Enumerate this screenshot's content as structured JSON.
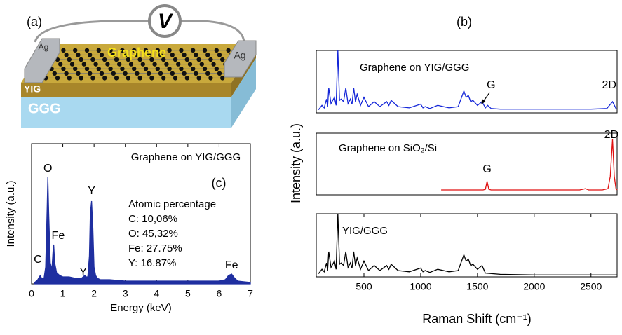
{
  "illustration": {
    "label": "(a)",
    "voltmeter": "V",
    "electrodes": [
      "Ag",
      "Ag"
    ],
    "sheet": "Graphene",
    "layers": [
      "YIG",
      "GGG"
    ]
  },
  "chart_data": [
    {
      "type": "area",
      "panel_label": "(c)",
      "title": "Graphene on YIG/GGG",
      "xlabel": "Energy (keV)",
      "ylabel": "Intensity (a.u.)",
      "xlim": [
        0,
        7
      ],
      "xticks": [
        0,
        1,
        2,
        3,
        4,
        5,
        6,
        7
      ],
      "ylim": [
        0,
        100
      ],
      "color": "#1f2fa0",
      "x": [
        0.1,
        0.2,
        0.25,
        0.28,
        0.32,
        0.4,
        0.45,
        0.5,
        0.52,
        0.55,
        0.6,
        0.65,
        0.69,
        0.71,
        0.74,
        0.8,
        0.9,
        1.0,
        1.2,
        1.4,
        1.6,
        1.7,
        1.75,
        1.8,
        1.85,
        1.88,
        1.92,
        1.96,
        2.0,
        2.05,
        2.1,
        2.2,
        2.5,
        3.0,
        3.5,
        4.0,
        4.5,
        5.0,
        5.5,
        6.0,
        6.2,
        6.3,
        6.4,
        6.5,
        6.6,
        7.0
      ],
      "values": [
        1,
        3,
        5,
        6,
        4,
        4,
        12,
        55,
        76,
        50,
        15,
        10,
        25,
        28,
        15,
        8,
        6,
        5,
        5,
        4,
        4,
        6,
        5,
        5,
        20,
        50,
        59,
        40,
        12,
        6,
        4,
        3,
        3,
        2,
        2,
        2,
        2,
        2,
        2,
        2,
        3,
        6,
        7,
        4,
        2,
        1
      ],
      "annotations": [
        {
          "text": "C",
          "x": 0.2,
          "y": 17
        },
        {
          "text": "O",
          "x": 0.52,
          "y": 82
        },
        {
          "text": "Fe",
          "x": 0.85,
          "y": 34
        },
        {
          "text": "Y",
          "x": 1.65,
          "y": 8
        },
        {
          "text": "Y",
          "x": 1.92,
          "y": 66
        },
        {
          "text": "Fe",
          "x": 6.4,
          "y": 13
        }
      ],
      "text_block": [
        "Atomic percentage",
        "C: 10,06%",
        "O: 45,32%",
        "Fe: 27.75%",
        "Y: 16.87%"
      ]
    },
    {
      "type": "line",
      "panel_label": "(b)",
      "title": "Graphene on YIG/GGG",
      "xlim": [
        80,
        2730
      ],
      "ylim": [
        0,
        100
      ],
      "color": "#1426d8",
      "x": [
        100,
        130,
        150,
        170,
        180,
        190,
        210,
        240,
        255,
        270,
        285,
        300,
        320,
        340,
        360,
        380,
        395,
        410,
        425,
        440,
        470,
        500,
        540,
        590,
        640,
        700,
        720,
        740,
        800,
        900,
        1000,
        1020,
        1040,
        1080,
        1150,
        1250,
        1330,
        1380,
        1400,
        1420,
        1440,
        1460,
        1500,
        1540,
        1570,
        1590,
        1620,
        1700,
        2000,
        2500,
        2640,
        2690,
        2720,
        2730
      ],
      "values": [
        5,
        12,
        8,
        22,
        10,
        40,
        15,
        25,
        12,
        100,
        20,
        22,
        18,
        40,
        15,
        22,
        14,
        40,
        18,
        30,
        12,
        25,
        10,
        18,
        10,
        18,
        12,
        20,
        10,
        8,
        14,
        8,
        10,
        7,
        12,
        8,
        10,
        35,
        25,
        28,
        18,
        20,
        12,
        18,
        8,
        12,
        7,
        6,
        6,
        6,
        7,
        18,
        7,
        6
      ],
      "annotations": [
        {
          "text": "G",
          "x": 1620,
          "y": 44,
          "arrow": true
        },
        {
          "text": "2D",
          "x": 2660,
          "y": 44
        }
      ]
    },
    {
      "type": "line",
      "title": "Graphene on SiO₂/Si",
      "ylabel": "Intensity (a.u.)",
      "xlim": [
        80,
        2730
      ],
      "ylim": [
        0,
        100
      ],
      "color": "#e01010",
      "x": [
        1180,
        1400,
        1550,
        1570,
        1585,
        1600,
        1620,
        2000,
        2400,
        2450,
        2480,
        2600,
        2650,
        2670,
        2690,
        2705,
        2720,
        2730
      ],
      "values": [
        8,
        8,
        8,
        9,
        22,
        9,
        8,
        8,
        8,
        10,
        8,
        8,
        10,
        30,
        90,
        30,
        10,
        8
      ],
      "annotations": [
        {
          "text": "G",
          "x": 1585,
          "y": 41
        },
        {
          "text": "2D",
          "x": 2680,
          "y": 97
        }
      ]
    },
    {
      "type": "line",
      "title": "YIG/GGG",
      "xlabel": "Raman Shift (cm⁻¹)",
      "xlim": [
        80,
        2730
      ],
      "xticks": [
        500,
        1000,
        1500,
        2000,
        2500
      ],
      "ylim": [
        0,
        100
      ],
      "color": "#000000",
      "x": [
        100,
        130,
        150,
        170,
        180,
        190,
        210,
        240,
        255,
        270,
        285,
        300,
        320,
        340,
        360,
        380,
        395,
        410,
        425,
        440,
        470,
        500,
        540,
        590,
        640,
        700,
        720,
        740,
        800,
        900,
        1000,
        1020,
        1040,
        1080,
        1150,
        1250,
        1330,
        1380,
        1400,
        1420,
        1440,
        1460,
        1500,
        1540,
        1570,
        1700,
        2000,
        2500,
        2730
      ],
      "values": [
        5,
        12,
        8,
        22,
        10,
        40,
        15,
        25,
        12,
        100,
        20,
        22,
        18,
        40,
        15,
        22,
        14,
        40,
        18,
        30,
        12,
        25,
        10,
        18,
        10,
        18,
        12,
        20,
        10,
        8,
        14,
        8,
        10,
        7,
        12,
        8,
        10,
        35,
        25,
        28,
        18,
        20,
        12,
        18,
        6,
        4,
        3,
        3,
        3
      ]
    }
  ]
}
